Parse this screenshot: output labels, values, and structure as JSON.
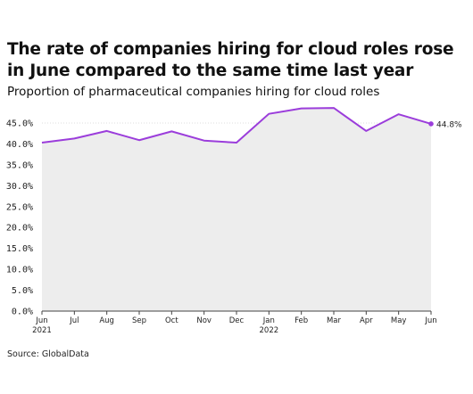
{
  "title": "The rate of companies hiring for cloud roles rose in June compared to the same time last year",
  "subtitle": "Proportion of pharmaceutical companies hiring for cloud roles",
  "source": "Source: GlobalData",
  "chart_data": {
    "type": "area",
    "title": "The rate of companies hiring for cloud roles rose in June compared to the same time last year",
    "subtitle": "Proportion of pharmaceutical companies hiring for cloud roles",
    "x": [
      "Jun 2021",
      "Jul",
      "Aug",
      "Sep",
      "Oct",
      "Nov",
      "Dec",
      "Jan 2022",
      "Feb",
      "Mar",
      "Apr",
      "May",
      "Jun"
    ],
    "x_tick_labels": [
      {
        "line1": "Jun",
        "line2": "2021"
      },
      {
        "line1": "Jul",
        "line2": ""
      },
      {
        "line1": "Aug",
        "line2": ""
      },
      {
        "line1": "Sep",
        "line2": ""
      },
      {
        "line1": "Oct",
        "line2": ""
      },
      {
        "line1": "Nov",
        "line2": ""
      },
      {
        "line1": "Dec",
        "line2": ""
      },
      {
        "line1": "Jan",
        "line2": "2022"
      },
      {
        "line1": "Feb",
        "line2": ""
      },
      {
        "line1": "Mar",
        "line2": ""
      },
      {
        "line1": "Apr",
        "line2": ""
      },
      {
        "line1": "May",
        "line2": ""
      },
      {
        "line1": "Jun",
        "line2": ""
      }
    ],
    "values": [
      40.3,
      41.3,
      43.1,
      40.9,
      43.0,
      40.8,
      40.3,
      47.2,
      48.5,
      48.6,
      43.1,
      47.1,
      44.8
    ],
    "yticks": [
      "0.0%",
      "5.0%",
      "10.0%",
      "15.0%",
      "20.0%",
      "25.0%",
      "30.0%",
      "35.0%",
      "40.0%",
      "45.0%"
    ],
    "ylim": [
      0,
      45
    ],
    "last_label": "44.8%",
    "grid": true,
    "colors": {
      "line": "#9b3ddb",
      "fill": "#ededed",
      "grid": "#dcdcdc",
      "axis": "#444444"
    }
  }
}
